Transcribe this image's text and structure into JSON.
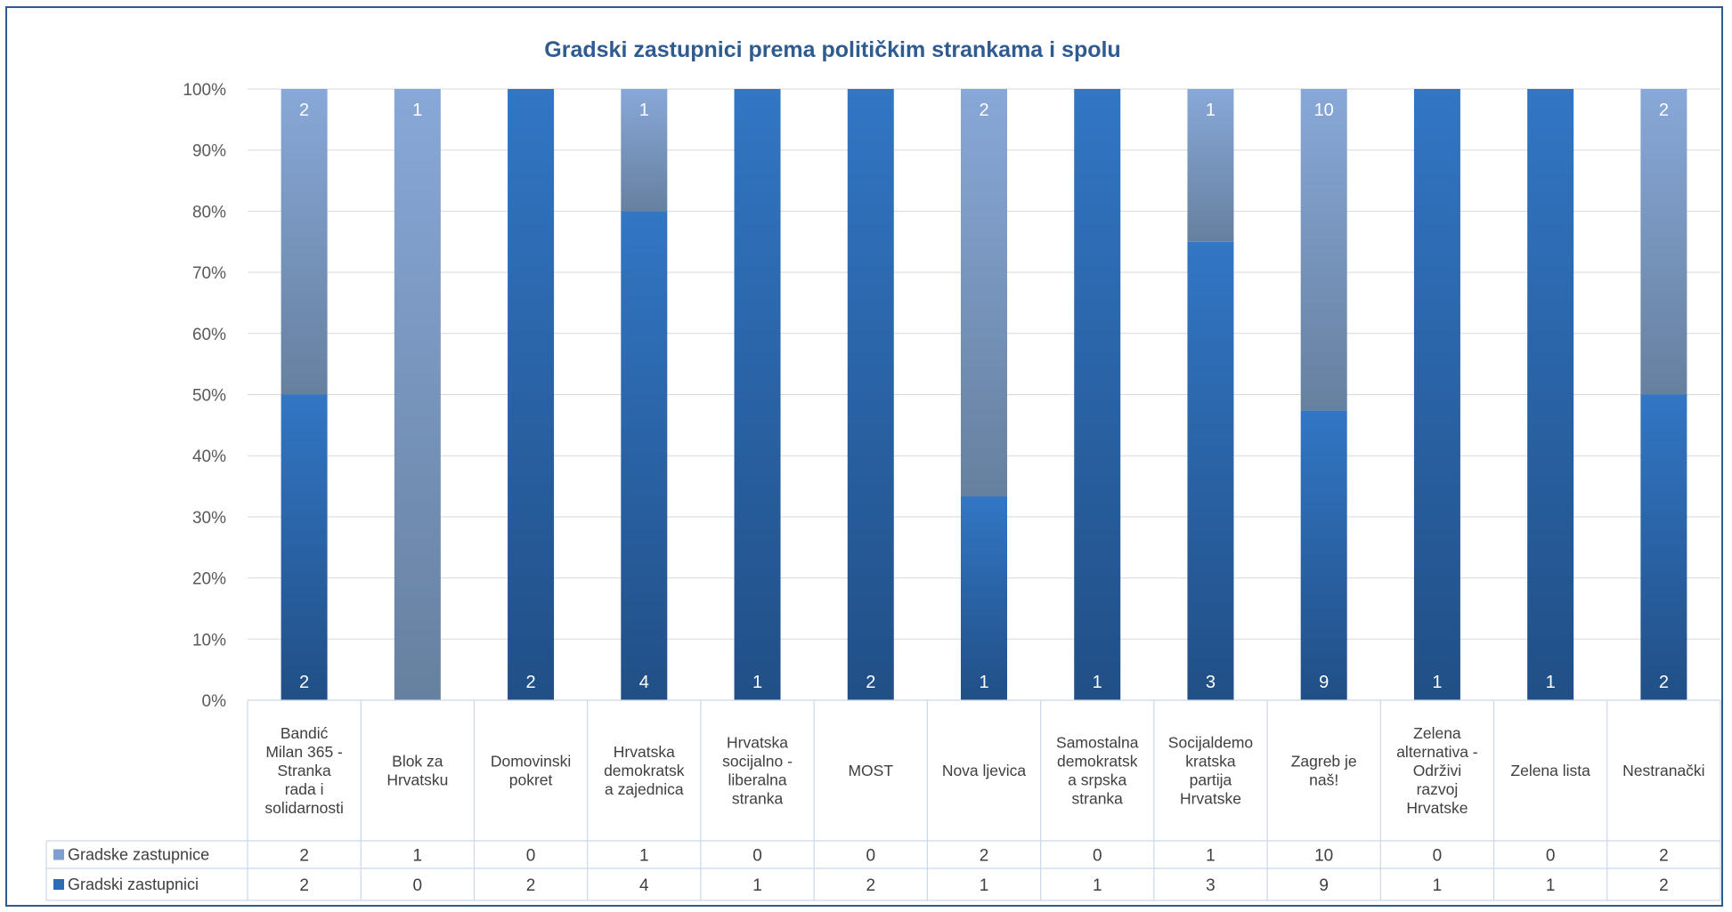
{
  "chart_data": {
    "type": "bar",
    "stacked": "percent",
    "title": "Gradski zastupnici prema političkim strankama  i spolu",
    "categories": [
      "Bandić Milan 365 - Stranka rada i solidarnosti",
      "Blok za Hrvatsku",
      "Domovinski pokret",
      "Hrvatska demokratska zajednica",
      "Hrvatska socijalno - liberalna stranka",
      "MOST",
      "Nova ljevica",
      "Samostalna demokratska srpska stranka",
      "Socijaldemokratska partija Hrvatske",
      "Zagreb je naš!",
      "Zelena alternativa - Održivi razvoj Hrvatske",
      "Zelena lista",
      "Nestranački"
    ],
    "category_lines": [
      [
        "Bandić",
        "Milan 365 -",
        "Stranka",
        "rada i",
        "solidarnosti"
      ],
      [
        "Blok za",
        "Hrvatsku"
      ],
      [
        "Domovinski",
        "pokret"
      ],
      [
        "Hrvatska",
        "demokratsk",
        "a zajednica"
      ],
      [
        "Hrvatska",
        "socijalno -",
        "liberalna",
        "stranka"
      ],
      [
        "MOST"
      ],
      [
        "Nova ljevica"
      ],
      [
        "Samostalna",
        "demokratsk",
        "a srpska",
        "stranka"
      ],
      [
        "Socijaldemo",
        "kratska",
        "partija",
        "Hrvatske"
      ],
      [
        "Zagreb je",
        "naš!"
      ],
      [
        "Zelena",
        "alternativa -",
        "Održivi",
        "razvoj",
        "Hrvatske"
      ],
      [
        "Zelena lista"
      ],
      [
        "Nestranački"
      ]
    ],
    "series": [
      {
        "name": "Gradski zastupnici",
        "values": [
          2,
          0,
          2,
          4,
          1,
          2,
          1,
          1,
          3,
          9,
          1,
          1,
          2
        ],
        "color": "#2e6bb5"
      },
      {
        "name": "Gradske zastupnice",
        "values": [
          2,
          1,
          0,
          1,
          0,
          0,
          2,
          0,
          1,
          10,
          0,
          0,
          2
        ],
        "color": "#7f9fd1"
      }
    ],
    "y_ticks": [
      "0%",
      "10%",
      "20%",
      "30%",
      "40%",
      "50%",
      "60%",
      "70%",
      "80%",
      "90%",
      "100%"
    ],
    "ylim": [
      0,
      100
    ],
    "grid": true,
    "legend": "data-table",
    "data_table": true
  }
}
